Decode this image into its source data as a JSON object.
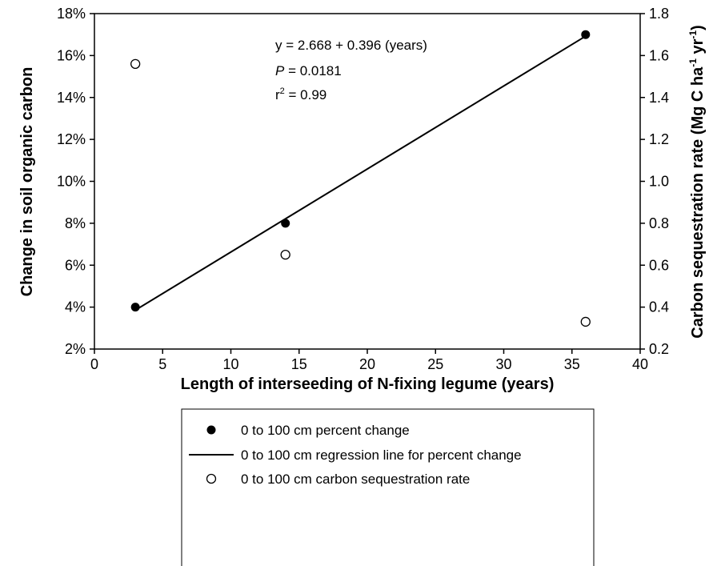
{
  "chart_data": {
    "type": "scatter",
    "xlabel": "Length of interseeding of N-fixing legume (years)",
    "ylabel_left": "Change in soil organic carbon",
    "ylabel_right_main": "Carbon sequestration rate (Mg C ha",
    "ylabel_right_sup1": "-1",
    "ylabel_right_mid": " yr",
    "ylabel_right_sup2": "-1",
    "ylabel_right_end": ")",
    "xlim": [
      0,
      40
    ],
    "x_ticks": [
      0,
      5,
      10,
      15,
      20,
      25,
      30,
      35,
      40
    ],
    "ylim_left": [
      2,
      18
    ],
    "y_left_ticks": [
      2,
      4,
      6,
      8,
      10,
      12,
      14,
      16,
      18
    ],
    "y_left_tick_labels": [
      "2%",
      "4%",
      "6%",
      "8%",
      "10%",
      "12%",
      "14%",
      "16%",
      "18%"
    ],
    "ylim_right": [
      0.2,
      1.8
    ],
    "y_right_ticks": [
      0.2,
      0.4,
      0.6,
      0.8,
      1.0,
      1.2,
      1.4,
      1.6,
      1.8
    ],
    "y_right_tick_labels": [
      "0.2",
      "0.4",
      "0.6",
      "0.8",
      "1.0",
      "1.2",
      "1.4",
      "1.6",
      "1.8"
    ],
    "grid": false,
    "series": [
      {
        "name": "0 to 100 cm percent change",
        "axis": "left",
        "marker": "filled-circle",
        "x": [
          3,
          14,
          36
        ],
        "y": [
          4.0,
          8.0,
          17.0
        ]
      },
      {
        "name": "0 to 100 cm regression line for percent change",
        "axis": "left",
        "marker": "line",
        "x": [
          3,
          36
        ],
        "y": [
          3.856,
          16.924
        ]
      },
      {
        "name": "0 to 100 cm carbon sequestration rate",
        "axis": "right",
        "marker": "open-circle",
        "x": [
          3,
          14,
          36
        ],
        "y": [
          1.56,
          0.65,
          0.33
        ]
      }
    ],
    "annotation": {
      "equation": "y = 2.668 + 0.396 (years)",
      "p_symbol": "P",
      "p_value": " = 0.0181",
      "r_prefix": "r",
      "r_sup": "2",
      "r_value": " = 0.99"
    },
    "legend_placement": "below chart"
  }
}
